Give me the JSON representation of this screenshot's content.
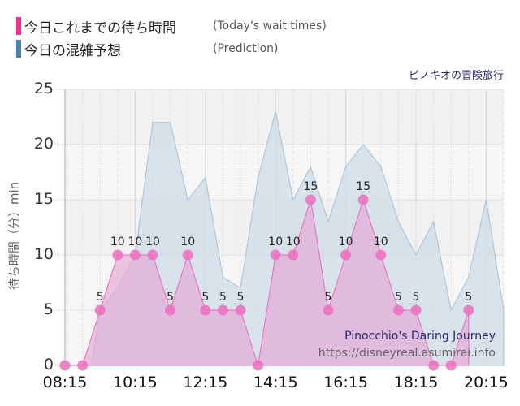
{
  "legend": {
    "actual": {
      "label_jp": "今日これまでの待ち時間",
      "label_en": "(Today's wait times)",
      "color": "#ee2f8f"
    },
    "prediction": {
      "label_jp": "今日の混雑予想",
      "label_en": "(Prediction)",
      "color": "#4a7fb0"
    }
  },
  "attraction_jp": "ピノキオの冒険旅行",
  "watermark": {
    "title": "Pinocchio's Daring Journey",
    "url": "https://disneyreal.asumirai.info"
  },
  "axes": {
    "ylabel": "待ち時間（分）min",
    "yticks": [
      "0",
      "5",
      "10",
      "15",
      "20",
      "25"
    ],
    "xticks": [
      "08:15",
      "10:15",
      "12:15",
      "14:15",
      "16:15",
      "18:15",
      "20:15"
    ]
  },
  "chart_data": {
    "type": "area",
    "title": "ピノキオの冒険旅行 / Pinocchio's Daring Journey",
    "xlabel": "",
    "ylabel": "待ち時間（分）min",
    "ylim": [
      0,
      25
    ],
    "grid": true,
    "legend_position": "top-left",
    "x_tick_labels": [
      "08:15",
      "10:15",
      "12:15",
      "14:15",
      "16:15",
      "18:15",
      "20:15"
    ],
    "series": [
      {
        "name": "今日これまでの待ち時間 (Today's wait times)",
        "x": [
          "08:15",
          "08:45",
          "09:15",
          "09:45",
          "10:15",
          "10:45",
          "11:15",
          "11:45",
          "12:15",
          "12:45",
          "13:15",
          "13:45",
          "14:15",
          "14:45",
          "15:15",
          "15:45",
          "16:15",
          "16:45",
          "17:15",
          "17:45",
          "18:15",
          "18:45",
          "19:15",
          "19:45"
        ],
        "values": [
          0,
          0,
          5,
          10,
          10,
          10,
          5,
          10,
          5,
          5,
          5,
          0,
          10,
          10,
          15,
          5,
          10,
          15,
          10,
          5,
          5,
          0,
          0,
          5
        ],
        "data_labels": [
          "",
          "",
          "5",
          "10",
          "10",
          "10",
          "5",
          "10",
          "5",
          "5",
          "5",
          "",
          "10",
          "10",
          "15",
          "5",
          "10",
          "15",
          "10",
          "5",
          "5",
          "",
          "",
          "5"
        ]
      },
      {
        "name": "今日の混雑予想 (Prediction)",
        "x": [
          "08:45",
          "09:00",
          "09:15",
          "09:45",
          "10:15",
          "10:45",
          "11:15",
          "11:45",
          "12:15",
          "12:45",
          "13:15",
          "13:45",
          "14:15",
          "14:45",
          "15:15",
          "15:45",
          "16:15",
          "16:45",
          "17:15",
          "17:45",
          "18:15",
          "18:45",
          "19:15",
          "19:45",
          "20:15",
          "20:45"
        ],
        "values": [
          0,
          0,
          5,
          7,
          10,
          22,
          22,
          15,
          17,
          8,
          7,
          17,
          23,
          15,
          18,
          13,
          18,
          20,
          18,
          13,
          10,
          13,
          5,
          8,
          15,
          5
        ]
      }
    ]
  }
}
